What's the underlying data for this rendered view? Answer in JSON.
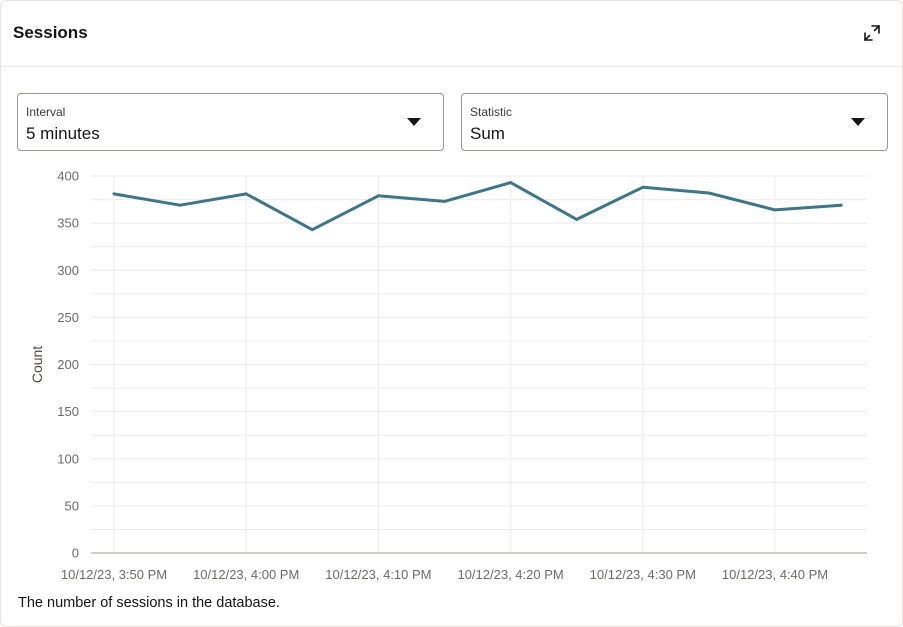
{
  "header": {
    "title": "Sessions",
    "expand_icon": "expand-arrows-icon"
  },
  "filters": {
    "interval": {
      "label": "Interval",
      "value": "5 minutes"
    },
    "statistic": {
      "label": "Statistic",
      "value": "Sum"
    }
  },
  "colors": {
    "line": "#3f7687",
    "grid": "#ececec",
    "axis": "#9e9892"
  },
  "chart_data": {
    "type": "line",
    "ylabel": "Count",
    "xlabel": "",
    "ylim": [
      0,
      400
    ],
    "yticks": [
      0,
      50,
      100,
      150,
      200,
      250,
      300,
      350,
      400
    ],
    "x": [
      "3:50 PM",
      "3:55 PM",
      "4:00 PM",
      "4:05 PM",
      "4:10 PM",
      "4:15 PM",
      "4:20 PM",
      "4:25 PM",
      "4:30 PM",
      "4:35 PM",
      "4:40 PM",
      "4:45 PM"
    ],
    "xtick_labels": [
      "10/12/23, 3:50 PM",
      "10/12/23, 4:00 PM",
      "10/12/23, 4:10 PM",
      "10/12/23, 4:20 PM",
      "10/12/23, 4:30 PM",
      "10/12/23, 4:40 PM"
    ],
    "series": [
      {
        "values": [
          381,
          369,
          381,
          343,
          379,
          373,
          393,
          354,
          388,
          382,
          364,
          369
        ]
      }
    ],
    "grid": true,
    "legend": "none"
  },
  "footer": {
    "caption": "The number of sessions in the database."
  }
}
